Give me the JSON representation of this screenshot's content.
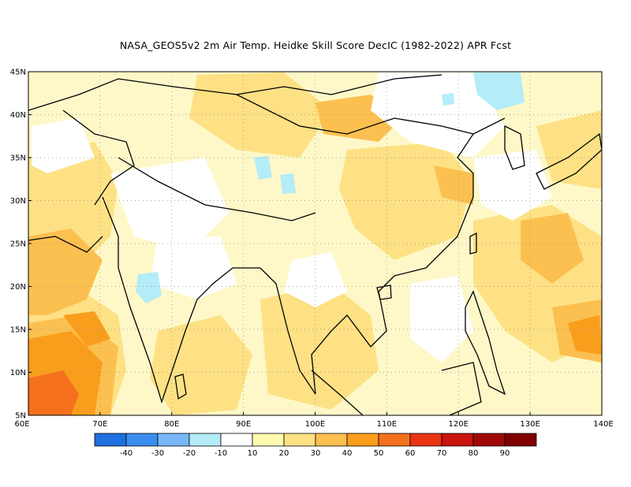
{
  "title": "NASA_GEOS5v2  2m Air Temp. Heidke Skill Score DecIC (1982-2022) APR Fcst",
  "axes": {
    "lat_labels": [
      "45N",
      "40N",
      "35N",
      "30N",
      "25N",
      "20N",
      "15N",
      "10N",
      "5N"
    ],
    "lon_labels": [
      "60E",
      "70E",
      "80E",
      "90E",
      "100E",
      "110E",
      "120E",
      "130E",
      "140E"
    ],
    "lon_range": [
      60,
      140
    ],
    "lat_range": [
      5,
      45
    ],
    "grid": "dotted"
  },
  "colorbar": {
    "labels": [
      "-40",
      "-30",
      "-20",
      "-10",
      "10",
      "20",
      "30",
      "40",
      "50",
      "60",
      "70",
      "80",
      "90"
    ],
    "colors": [
      "#1e6fe0",
      "#3b8ef0",
      "#78b8f8",
      "#b4ecf8",
      "#ffffff",
      "#fefab0",
      "#fde184",
      "#fcc050",
      "#f99e1c",
      "#f5701c",
      "#e83412",
      "#c8140c",
      "#a00808",
      "#800000"
    ]
  },
  "palette": {
    "land_background": "#fef6c4",
    "coast": "#000000"
  }
}
